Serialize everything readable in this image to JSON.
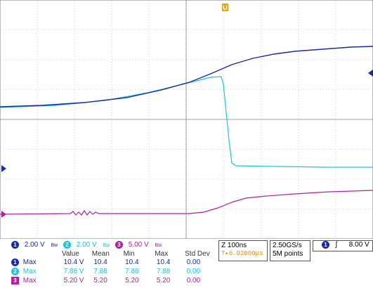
{
  "channels": [
    {
      "id": "1",
      "scale": "2.00 V",
      "bw": "Bw",
      "color": "#1a2aa0"
    },
    {
      "id": "2",
      "scale": "2.00 V",
      "bw": "Bw",
      "color": "#19c6e0"
    },
    {
      "id": "3",
      "scale": "5.00 V",
      "bw": "Bw",
      "color": "#b0209f"
    }
  ],
  "timebase": {
    "scale": "Z 100ns",
    "position": "T▸6.02000μs"
  },
  "acquisition": {
    "rate": "2.50GS/s",
    "points": "5M points"
  },
  "trigger": {
    "channel": "1",
    "slope": "ʃ",
    "level": "8.00 V"
  },
  "trigger_marker": "U",
  "measurements": {
    "headers": [
      "Value",
      "Mean",
      "Min",
      "Max",
      "Std Dev"
    ],
    "rows": [
      {
        "ch": "1",
        "label": "Max",
        "value": "10.4 V",
        "mean": "10.4",
        "min": "10.4",
        "max": "10.4",
        "std": "0.00"
      },
      {
        "ch": "2",
        "label": "Max",
        "value": "7.88 V",
        "mean": "7.88",
        "min": "7.88",
        "max": "7.88",
        "std": "0.00"
      },
      {
        "ch": "3",
        "label": "Max",
        "value": "5.20 V",
        "mean": "5.20",
        "min": "5.20",
        "max": "5.20",
        "std": "0.00"
      }
    ]
  }
}
